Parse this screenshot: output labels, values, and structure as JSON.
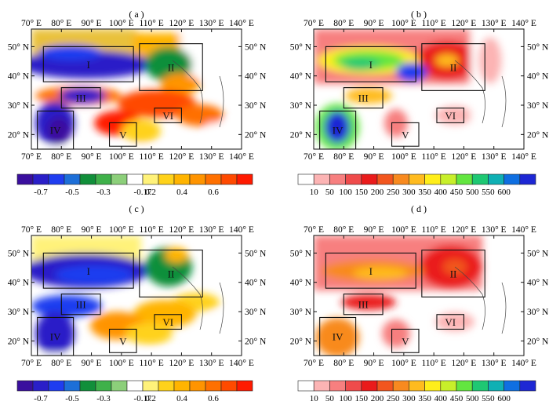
{
  "panels": [
    {
      "id": "a",
      "label": "( a )",
      "scheme": "diverging"
    },
    {
      "id": "b",
      "label": "( b )",
      "scheme": "sequential"
    },
    {
      "id": "c",
      "label": "( c )",
      "scheme": "diverging"
    },
    {
      "id": "d",
      "label": "( d )",
      "scheme": "sequential"
    }
  ],
  "axes": {
    "lon_ticks": [
      "70° E",
      "80° E",
      "90° E",
      "100° E",
      "110° E",
      "120° E",
      "130° E",
      "140° E"
    ],
    "lat_ticks": [
      "50° N",
      "40° N",
      "30° N",
      "20° N"
    ],
    "lon_range": [
      70,
      140
    ],
    "lat_range": [
      15,
      56
    ]
  },
  "regions": [
    {
      "label": "I",
      "lon": [
        74,
        104
      ],
      "lat": [
        38,
        50
      ]
    },
    {
      "label": "II",
      "lon": [
        106,
        127
      ],
      "lat": [
        35,
        51
      ]
    },
    {
      "label": "III",
      "lon": [
        80,
        93
      ],
      "lat": [
        29,
        36
      ]
    },
    {
      "label": "IV",
      "lon": [
        72,
        84
      ],
      "lat": [
        15,
        28
      ]
    },
    {
      "label": "V",
      "lon": [
        96,
        105
      ],
      "lat": [
        16,
        24
      ]
    },
    {
      "label": "VI",
      "lon": [
        111,
        120
      ],
      "lat": [
        24,
        29
      ]
    }
  ],
  "colorbars": {
    "diverging": {
      "labels": [
        "-0.7",
        "-0.5",
        "-0.3",
        "-0.17",
        "0.2",
        "0.4",
        "0.6"
      ],
      "colors": [
        "#3a0f9e",
        "#2a1fc8",
        "#1f3df0",
        "#1d6fd8",
        "#118f3a",
        "#3fb14a",
        "#8ccf7a",
        "#ffffff",
        "#fff27a",
        "#ffd21a",
        "#ffb400",
        "#ff9400",
        "#ff7000",
        "#ff4a00",
        "#ff1a00"
      ]
    },
    "sequential": {
      "labels": [
        "10",
        "50",
        "100",
        "150",
        "200",
        "250",
        "300",
        "350",
        "400",
        "450",
        "500",
        "550",
        "600"
      ],
      "colors": [
        "#ffffff",
        "#fcb4b4",
        "#f77f7f",
        "#ef4b4b",
        "#ea1b1b",
        "#f2561e",
        "#f88a1f",
        "#ffbb1f",
        "#ffee1a",
        "#c8ef2a",
        "#63e640",
        "#1ec873",
        "#0fb0b4",
        "#0f6fe1",
        "#1d27d4"
      ]
    }
  }
}
